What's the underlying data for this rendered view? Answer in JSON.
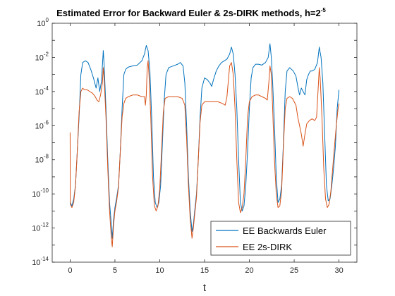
{
  "chart_data": {
    "type": "line",
    "title": "Estimated Error for Backward Euler & 2s-DIRK methods, h=2",
    "title_superscript": "-5",
    "xlabel": "t",
    "ylabel": "",
    "xlim": [
      -2,
      32
    ],
    "ylim_log10": [
      -14,
      0
    ],
    "yscale": "log",
    "x_ticks": [
      0,
      5,
      10,
      15,
      20,
      25,
      30
    ],
    "x_tick_labels": [
      "0",
      "5",
      "10",
      "15",
      "20",
      "25",
      "30"
    ],
    "y_tick_exponents": [
      -14,
      -12,
      -10,
      -8,
      -6,
      -4,
      -2,
      0
    ],
    "y_tick_base": "10",
    "y_tick_exp_labels": [
      "-14",
      "-12",
      "-10",
      "-8",
      "-6",
      "-4",
      "-2",
      "0"
    ],
    "grid": false,
    "legend_position": "bottom-right",
    "series": [
      {
        "name": "EE Backwards Euler",
        "color": "#0072BD",
        "points_log10": [
          [
            0.0,
            -10.5
          ],
          [
            0.2,
            -10.7
          ],
          [
            0.4,
            -10.3
          ],
          [
            0.6,
            -9.5
          ],
          [
            0.8,
            -7.5
          ],
          [
            1.0,
            -5.5
          ],
          [
            1.2,
            -3.0
          ],
          [
            1.4,
            -2.3
          ],
          [
            1.7,
            -2.2
          ],
          [
            2.0,
            -2.3
          ],
          [
            2.3,
            -2.7
          ],
          [
            2.6,
            -3.2
          ],
          [
            2.9,
            -3.8
          ],
          [
            3.1,
            -3.2
          ],
          [
            3.3,
            -4.0
          ],
          [
            3.5,
            -3.4
          ],
          [
            3.7,
            -1.6
          ],
          [
            3.8,
            -2.5
          ],
          [
            4.0,
            -5.0
          ],
          [
            4.2,
            -8.0
          ],
          [
            4.4,
            -10.5
          ],
          [
            4.6,
            -11.8
          ],
          [
            4.7,
            -12.6
          ],
          [
            4.85,
            -11.5
          ],
          [
            5.0,
            -10.8
          ],
          [
            5.2,
            -10.2
          ],
          [
            5.4,
            -9.5
          ],
          [
            5.6,
            -7.5
          ],
          [
            5.8,
            -5.0
          ],
          [
            6.0,
            -3.0
          ],
          [
            6.2,
            -2.7
          ],
          [
            6.4,
            -2.6
          ],
          [
            6.6,
            -2.55
          ],
          [
            7.0,
            -2.5
          ],
          [
            7.5,
            -2.45
          ],
          [
            8.0,
            -2.2
          ],
          [
            8.3,
            -1.8
          ],
          [
            8.5,
            -1.3
          ],
          [
            8.7,
            -1.6
          ],
          [
            8.9,
            -2.8
          ],
          [
            9.1,
            -5.5
          ],
          [
            9.3,
            -9.0
          ],
          [
            9.5,
            -10.5
          ],
          [
            9.7,
            -10.8
          ],
          [
            9.9,
            -10.5
          ],
          [
            10.1,
            -9.5
          ],
          [
            10.3,
            -7.0
          ],
          [
            10.5,
            -4.5
          ],
          [
            10.7,
            -3.0
          ],
          [
            11.0,
            -2.6
          ],
          [
            11.5,
            -2.5
          ],
          [
            12.0,
            -2.4
          ],
          [
            12.3,
            -2.3
          ],
          [
            12.6,
            -2.5
          ],
          [
            12.8,
            -3.5
          ],
          [
            13.0,
            -6.0
          ],
          [
            13.2,
            -9.0
          ],
          [
            13.4,
            -11.0
          ],
          [
            13.6,
            -12.2
          ],
          [
            13.75,
            -11.8
          ],
          [
            13.9,
            -11.0
          ],
          [
            14.1,
            -10.0
          ],
          [
            14.3,
            -8.0
          ],
          [
            14.5,
            -5.5
          ],
          [
            14.7,
            -3.8
          ],
          [
            15.0,
            -3.2
          ],
          [
            15.3,
            -3.3
          ],
          [
            15.6,
            -3.5
          ],
          [
            15.8,
            -3.7
          ],
          [
            16.0,
            -3.3
          ],
          [
            16.3,
            -2.8
          ],
          [
            16.6,
            -2.5
          ],
          [
            16.9,
            -2.3
          ],
          [
            17.2,
            -2.2
          ],
          [
            17.5,
            -2.1
          ],
          [
            17.8,
            -1.8
          ],
          [
            18.0,
            -1.4
          ],
          [
            18.2,
            -1.8
          ],
          [
            18.4,
            -3.0
          ],
          [
            18.6,
            -5.0
          ],
          [
            18.8,
            -8.0
          ],
          [
            19.0,
            -10.5
          ],
          [
            19.2,
            -11.0
          ],
          [
            19.4,
            -10.7
          ],
          [
            19.6,
            -9.5
          ],
          [
            19.8,
            -7.5
          ],
          [
            20.0,
            -5.0
          ],
          [
            20.2,
            -3.2
          ],
          [
            20.4,
            -2.6
          ],
          [
            20.7,
            -2.4
          ],
          [
            21.0,
            -2.4
          ],
          [
            21.4,
            -2.45
          ],
          [
            21.8,
            -2.3
          ],
          [
            22.1,
            -2.0
          ],
          [
            22.3,
            -1.2
          ],
          [
            22.45,
            -2.0
          ],
          [
            22.6,
            -3.5
          ],
          [
            22.8,
            -6.0
          ],
          [
            23.0,
            -9.0
          ],
          [
            23.2,
            -10.5
          ],
          [
            23.4,
            -10.3
          ],
          [
            23.6,
            -9.5
          ],
          [
            23.8,
            -7.0
          ],
          [
            24.0,
            -4.0
          ],
          [
            24.2,
            -2.8
          ],
          [
            24.5,
            -2.6
          ],
          [
            24.9,
            -2.8
          ],
          [
            25.2,
            -3.1
          ],
          [
            25.4,
            -3.7
          ],
          [
            25.6,
            -4.2
          ],
          [
            25.8,
            -3.8
          ],
          [
            26.0,
            -4.0
          ],
          [
            26.2,
            -4.2
          ],
          [
            26.4,
            -3.3
          ],
          [
            26.6,
            -3.0
          ],
          [
            26.8,
            -2.8
          ],
          [
            27.0,
            -2.8
          ],
          [
            27.3,
            -2.7
          ],
          [
            27.6,
            -2.3
          ],
          [
            27.8,
            -1.4
          ],
          [
            28.0,
            -2.0
          ],
          [
            28.2,
            -3.5
          ],
          [
            28.4,
            -6.5
          ],
          [
            28.6,
            -9.5
          ],
          [
            28.8,
            -10.4
          ],
          [
            29.0,
            -10.3
          ],
          [
            29.2,
            -9.5
          ],
          [
            29.4,
            -8.5
          ],
          [
            29.6,
            -7.2
          ],
          [
            29.8,
            -5.0
          ],
          [
            30.0,
            -3.9
          ]
        ]
      },
      {
        "name": "EE 2s-DIRK",
        "color": "#D95319",
        "points_log10": [
          [
            0.0,
            -6.4
          ],
          [
            0.02,
            -10.6
          ],
          [
            0.2,
            -10.8
          ],
          [
            0.4,
            -10.5
          ],
          [
            0.6,
            -9.5
          ],
          [
            0.8,
            -7.5
          ],
          [
            1.0,
            -5.2
          ],
          [
            1.2,
            -4.0
          ],
          [
            1.4,
            -3.8
          ],
          [
            1.6,
            -3.9
          ],
          [
            1.9,
            -3.9
          ],
          [
            2.2,
            -4.0
          ],
          [
            2.5,
            -4.1
          ],
          [
            2.8,
            -4.3
          ],
          [
            3.0,
            -4.5
          ],
          [
            3.2,
            -4.6
          ],
          [
            3.4,
            -4.2
          ],
          [
            3.6,
            -3.5
          ],
          [
            3.7,
            -2.6
          ],
          [
            3.8,
            -3.3
          ],
          [
            4.0,
            -5.5
          ],
          [
            4.2,
            -8.5
          ],
          [
            4.4,
            -11.0
          ],
          [
            4.6,
            -12.6
          ],
          [
            4.7,
            -13.1
          ],
          [
            4.85,
            -11.8
          ],
          [
            5.0,
            -11.0
          ],
          [
            5.2,
            -10.4
          ],
          [
            5.4,
            -9.6
          ],
          [
            5.6,
            -7.5
          ],
          [
            5.8,
            -5.5
          ],
          [
            6.0,
            -4.7
          ],
          [
            6.2,
            -4.4
          ],
          [
            6.5,
            -4.3
          ],
          [
            7.0,
            -4.2
          ],
          [
            7.5,
            -4.2
          ],
          [
            8.0,
            -4.3
          ],
          [
            8.3,
            -4.3
          ],
          [
            8.4,
            -4.8
          ],
          [
            8.5,
            -4.2
          ],
          [
            8.6,
            -2.6
          ],
          [
            8.7,
            -2.2
          ],
          [
            8.8,
            -3.0
          ],
          [
            9.0,
            -5.5
          ],
          [
            9.2,
            -9.0
          ],
          [
            9.4,
            -10.7
          ],
          [
            9.6,
            -11.0
          ],
          [
            9.8,
            -10.7
          ],
          [
            10.0,
            -9.7
          ],
          [
            10.2,
            -7.5
          ],
          [
            10.4,
            -5.2
          ],
          [
            10.6,
            -4.4
          ],
          [
            11.0,
            -4.3
          ],
          [
            11.5,
            -4.3
          ],
          [
            12.0,
            -4.3
          ],
          [
            12.5,
            -4.4
          ],
          [
            12.8,
            -4.8
          ],
          [
            13.0,
            -6.8
          ],
          [
            13.2,
            -9.5
          ],
          [
            13.4,
            -11.5
          ],
          [
            13.6,
            -12.6
          ],
          [
            13.75,
            -12.0
          ],
          [
            13.9,
            -11.2
          ],
          [
            14.1,
            -10.2
          ],
          [
            14.3,
            -8.0
          ],
          [
            14.5,
            -5.8
          ],
          [
            14.7,
            -4.8
          ],
          [
            15.0,
            -4.6
          ],
          [
            15.5,
            -4.6
          ],
          [
            16.0,
            -4.6
          ],
          [
            16.5,
            -4.6
          ],
          [
            17.0,
            -4.7
          ],
          [
            17.3,
            -4.8
          ],
          [
            17.5,
            -4.3
          ],
          [
            17.8,
            -2.5
          ],
          [
            18.0,
            -2.3
          ],
          [
            18.2,
            -3.0
          ],
          [
            18.4,
            -5.0
          ],
          [
            18.6,
            -8.0
          ],
          [
            18.8,
            -10.5
          ],
          [
            19.0,
            -11.1
          ],
          [
            19.2,
            -10.8
          ],
          [
            19.4,
            -10.0
          ],
          [
            19.6,
            -8.0
          ],
          [
            19.8,
            -5.5
          ],
          [
            20.0,
            -4.6
          ],
          [
            20.3,
            -4.3
          ],
          [
            20.7,
            -4.2
          ],
          [
            21.0,
            -4.2
          ],
          [
            21.4,
            -4.3
          ],
          [
            21.8,
            -4.4
          ],
          [
            22.0,
            -4.5
          ],
          [
            22.2,
            -3.3
          ],
          [
            22.3,
            -2.5
          ],
          [
            22.45,
            -3.0
          ],
          [
            22.6,
            -5.0
          ],
          [
            22.8,
            -8.0
          ],
          [
            23.0,
            -10.0
          ],
          [
            23.2,
            -10.8
          ],
          [
            23.4,
            -10.7
          ],
          [
            23.6,
            -9.8
          ],
          [
            23.8,
            -7.2
          ],
          [
            24.0,
            -5.0
          ],
          [
            24.2,
            -4.4
          ],
          [
            24.5,
            -4.3
          ],
          [
            24.8,
            -4.4
          ],
          [
            25.0,
            -4.6
          ],
          [
            25.2,
            -4.8
          ],
          [
            25.4,
            -5.5
          ],
          [
            25.6,
            -6.0
          ],
          [
            25.8,
            -6.5
          ],
          [
            26.0,
            -7.2
          ],
          [
            26.2,
            -6.5
          ],
          [
            26.4,
            -5.9
          ],
          [
            26.7,
            -5.7
          ],
          [
            27.0,
            -5.6
          ],
          [
            27.3,
            -5.7
          ],
          [
            27.5,
            -5.5
          ],
          [
            27.7,
            -3.6
          ],
          [
            27.8,
            -2.6
          ],
          [
            27.9,
            -3.2
          ],
          [
            28.1,
            -5.5
          ],
          [
            28.3,
            -8.5
          ],
          [
            28.5,
            -10.3
          ],
          [
            28.7,
            -10.8
          ],
          [
            28.9,
            -10.6
          ],
          [
            29.1,
            -9.8
          ],
          [
            29.3,
            -8.5
          ],
          [
            29.5,
            -7.2
          ],
          [
            29.7,
            -6.0
          ],
          [
            29.9,
            -5.0
          ],
          [
            30.0,
            -4.7
          ]
        ]
      }
    ]
  }
}
